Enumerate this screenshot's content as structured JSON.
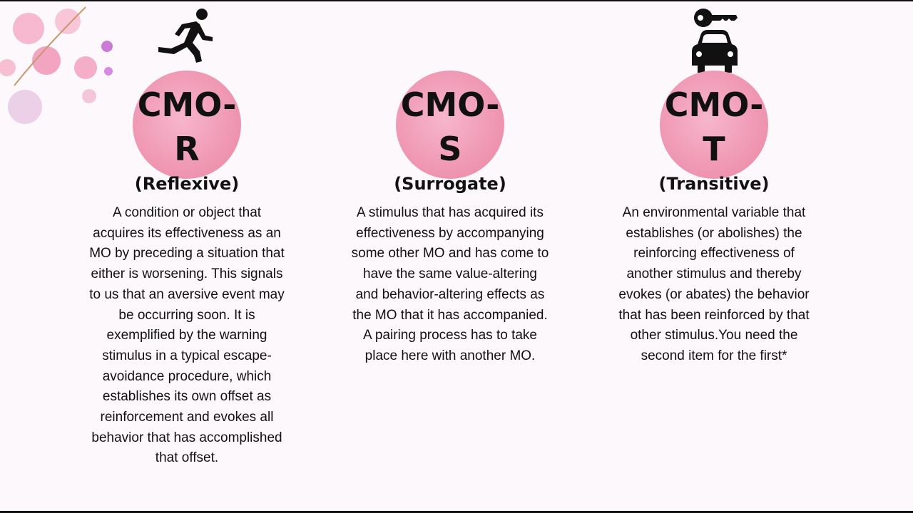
{
  "columns": [
    {
      "title": "CMO-R",
      "subtitle": "(Reflexive)",
      "description": "A condition or object that acquires its effectiveness as an MO by preceding a situation that either is worsening. This signals to us that an aversive event may be occurring soon. It is exemplified by the warning stimulus in a typical escape-avoidance procedure, which establishes its own offset as reinforcement and evokes all behavior that has accomplished that offset."
    },
    {
      "title": "CMO-S",
      "subtitle": "(Surrogate)",
      "description": "A stimulus that has acquired its effectiveness by accompanying some other MO and has come to have the same value-altering and behavior-altering effects as the MO that it has accompanied. A pairing process has to take place here with another MO."
    },
    {
      "title": "CMO-T",
      "subtitle": "(Transitive)",
      "description": "An environmental variable that establishes (or abolishes) the reinforcing effectiveness of another stimulus and thereby evokes (or abates) the behavior that has been reinforced by that other stimulus.You need the second item for the first*"
    }
  ]
}
